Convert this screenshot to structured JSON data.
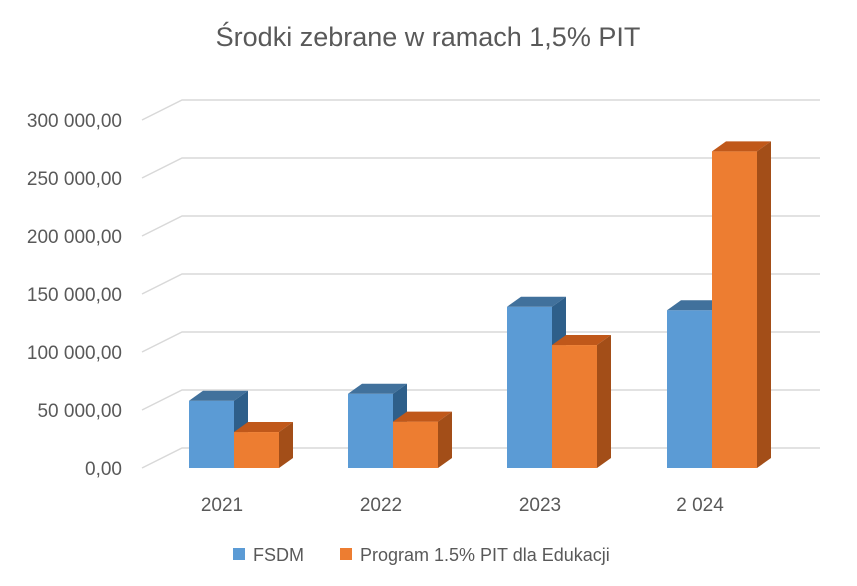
{
  "chart_data": {
    "type": "bar",
    "title": "Środki zebrane w ramach 1,5% PIT",
    "categories": [
      "2021",
      "2022",
      "2023",
      "2 024"
    ],
    "series": [
      {
        "name": "FSDM",
        "values": [
          58000,
          64000,
          139000,
          136000
        ],
        "color": "#5B9BD5",
        "top_color": "#41719C",
        "side_color": "#2E5F8A"
      },
      {
        "name": "Program 1.5% PIT dla Edukacji",
        "values": [
          31000,
          40000,
          106000,
          273000
        ],
        "color": "#ED7D31",
        "top_color": "#C0581A",
        "side_color": "#A34E18"
      }
    ],
    "y_ticks": [
      "0,00",
      "50 000,00",
      "100 000,00",
      "150 000,00",
      "200 000,00",
      "250 000,00",
      "300 000,00"
    ],
    "ylim": [
      0,
      300000
    ],
    "grid": true,
    "legend_position": "bottom",
    "gridline_color": "#D9D9D9"
  }
}
